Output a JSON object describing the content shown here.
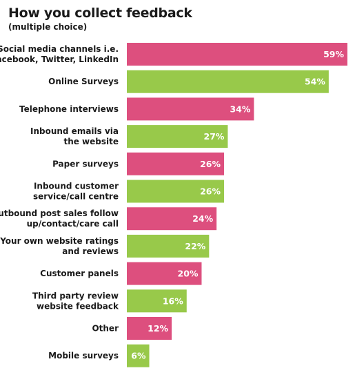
{
  "chart_data": {
    "type": "bar",
    "orientation": "horizontal",
    "title": "How you collect feedback",
    "subtitle": "(multiple choice)",
    "categories": [
      [
        "Social media channels i.e.",
        "Facebook, Twitter, LinkedIn"
      ],
      [
        "Online Surveys"
      ],
      [
        "Telephone interviews"
      ],
      [
        "Inbound emails via",
        "the website"
      ],
      [
        "Paper surveys"
      ],
      [
        "Inbound customer",
        "service/call centre"
      ],
      [
        "Outbound post sales follow",
        "up/contact/care call"
      ],
      [
        "Your own website ratings",
        "and reviews"
      ],
      [
        "Customer panels"
      ],
      [
        "Third party review",
        "website feedback"
      ],
      [
        "Other"
      ],
      [
        "Mobile surveys"
      ]
    ],
    "values": [
      59,
      54,
      34,
      27,
      26,
      26,
      24,
      22,
      20,
      16,
      12,
      6
    ],
    "value_labels": [
      "59%",
      "54%",
      "34%",
      "27%",
      "26%",
      "26%",
      "24%",
      "22%",
      "20%",
      "16%",
      "12%",
      "6%"
    ],
    "bar_colors": [
      "#dd4f7e",
      "#98c94a",
      "#dd4f7e",
      "#98c94a",
      "#dd4f7e",
      "#98c94a",
      "#dd4f7e",
      "#98c94a",
      "#dd4f7e",
      "#98c94a",
      "#dd4f7e",
      "#98c94a"
    ],
    "xlim": [
      0,
      59
    ]
  }
}
